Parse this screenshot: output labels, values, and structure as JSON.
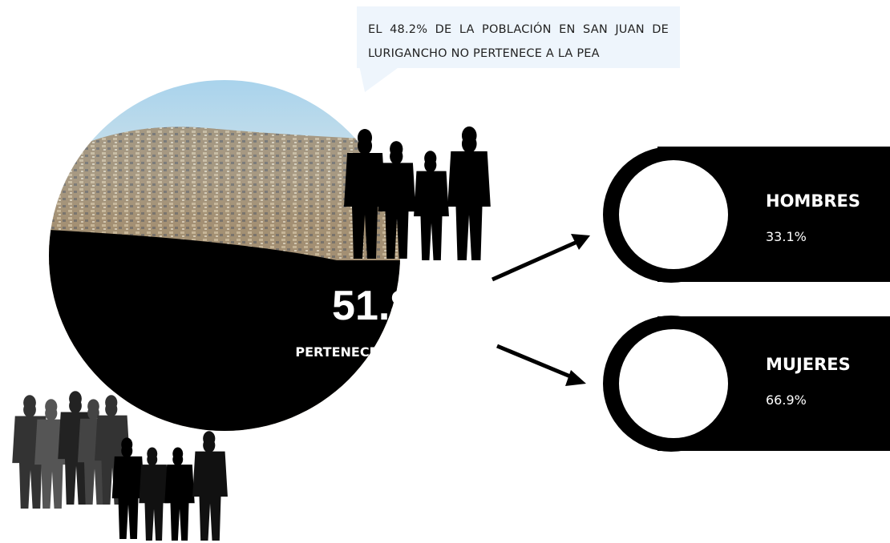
{
  "callout": {
    "text": "EL 48.2% DE LA POBLACIÓN EN SAN JUAN DE LURIGANCHO NO PERTENECE A LA PEA"
  },
  "main": {
    "value": "51.8 %",
    "label": "PERTENECEN A LA PEA"
  },
  "groups": [
    {
      "name": "HOMBRES",
      "value": "33.1%"
    },
    {
      "name": "MUJERES",
      "value": "66.9%"
    }
  ]
}
